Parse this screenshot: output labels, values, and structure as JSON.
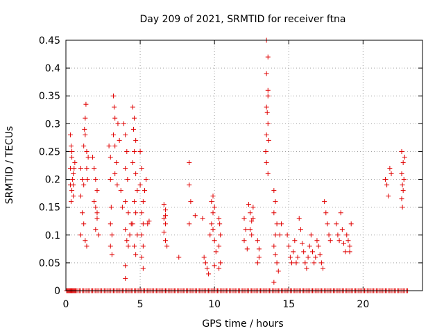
{
  "chart_data": {
    "type": "scatter",
    "title": "Day 209 of 2021, SRMTID for receiver ftna",
    "xlabel": "GPS time / hours",
    "ylabel": "SRMTID / TECUs",
    "xlim": [
      0,
      24
    ],
    "ylim": [
      0,
      0.45
    ],
    "xticks": [
      0,
      5,
      10,
      15,
      20
    ],
    "xtick_labels": [
      "0",
      "5",
      "10",
      "15",
      "20"
    ],
    "yticks": [
      0,
      0.05,
      0.1,
      0.15,
      0.2,
      0.25,
      0.3,
      0.35,
      0.4,
      0.45
    ],
    "ytick_labels": [
      "0",
      "0.05",
      "0.1",
      "0.15",
      "0.2",
      "0.25",
      "0.3",
      "0.35",
      "0.4",
      "0.45"
    ],
    "grid": true,
    "marker": "plus",
    "color": "#e00000",
    "series": [
      {
        "points": [
          [
            0.3,
            0.28
          ],
          [
            0.35,
            0.26
          ],
          [
            0.4,
            0.24
          ],
          [
            0.3,
            0.22
          ],
          [
            0.5,
            0.21
          ],
          [
            0.45,
            0.2
          ],
          [
            0.3,
            0.19
          ],
          [
            0.4,
            0.18
          ],
          [
            0.5,
            0.17
          ],
          [
            0.35,
            0.16
          ],
          [
            0.55,
            0.22
          ],
          [
            0.6,
            0.23
          ],
          [
            0.4,
            0.25
          ],
          [
            0.5,
            0.19
          ],
          [
            1.0,
            0.22
          ],
          [
            1.1,
            0.2
          ],
          [
            1.2,
            0.19
          ],
          [
            1.0,
            0.17
          ],
          [
            1.1,
            0.14
          ],
          [
            1.2,
            0.12
          ],
          [
            1.0,
            0.1
          ],
          [
            1.3,
            0.09
          ],
          [
            1.4,
            0.08
          ],
          [
            1.2,
            0.26
          ],
          [
            1.25,
            0.29
          ],
          [
            1.3,
            0.31
          ],
          [
            1.35,
            0.335
          ],
          [
            1.3,
            0.28
          ],
          [
            1.4,
            0.25
          ],
          [
            1.5,
            0.24
          ],
          [
            1.4,
            0.22
          ],
          [
            1.45,
            0.2
          ],
          [
            1.8,
            0.24
          ],
          [
            1.9,
            0.22
          ],
          [
            2.0,
            0.2
          ],
          [
            2.1,
            0.18
          ],
          [
            1.9,
            0.16
          ],
          [
            2.0,
            0.15
          ],
          [
            2.1,
            0.13
          ],
          [
            2.0,
            0.11
          ],
          [
            2.2,
            0.1
          ],
          [
            2.1,
            0.14
          ],
          [
            2.9,
            0.26
          ],
          [
            3.0,
            0.24
          ],
          [
            3.0,
            0.2
          ],
          [
            3.05,
            0.15
          ],
          [
            3.0,
            0.12
          ],
          [
            3.1,
            0.1
          ],
          [
            3.0,
            0.08
          ],
          [
            3.1,
            0.065
          ],
          [
            3.2,
            0.35
          ],
          [
            3.25,
            0.33
          ],
          [
            3.3,
            0.31
          ],
          [
            3.2,
            0.28
          ],
          [
            3.3,
            0.26
          ],
          [
            3.4,
            0.23
          ],
          [
            3.3,
            0.21
          ],
          [
            3.45,
            0.19
          ],
          [
            3.5,
            0.3
          ],
          [
            3.6,
            0.27
          ],
          [
            3.7,
            0.18
          ],
          [
            3.8,
            0.15
          ],
          [
            3.9,
            0.3
          ],
          [
            4.0,
            0.28
          ],
          [
            4.1,
            0.25
          ],
          [
            4.0,
            0.22
          ],
          [
            4.15,
            0.2
          ],
          [
            4.0,
            0.16
          ],
          [
            4.2,
            0.14
          ],
          [
            4.0,
            0.11
          ],
          [
            4.1,
            0.09
          ],
          [
            4.2,
            0.08
          ],
          [
            4.0,
            0.045
          ],
          [
            4.0,
            0.022
          ],
          [
            4.3,
            0.1
          ],
          [
            4.4,
            0.12
          ],
          [
            4.5,
            0.33
          ],
          [
            4.6,
            0.31
          ],
          [
            4.55,
            0.29
          ],
          [
            4.7,
            0.27
          ],
          [
            4.6,
            0.25
          ],
          [
            4.5,
            0.23
          ],
          [
            4.7,
            0.21
          ],
          [
            4.8,
            0.18
          ],
          [
            4.6,
            0.16
          ],
          [
            4.7,
            0.14
          ],
          [
            4.5,
            0.12
          ],
          [
            4.8,
            0.1
          ],
          [
            4.6,
            0.08
          ],
          [
            4.7,
            0.065
          ],
          [
            5.0,
            0.25
          ],
          [
            5.1,
            0.22
          ],
          [
            5.0,
            0.19
          ],
          [
            5.2,
            0.16
          ],
          [
            5.1,
            0.14
          ],
          [
            5.2,
            0.12
          ],
          [
            5.1,
            0.1
          ],
          [
            5.2,
            0.08
          ],
          [
            5.1,
            0.06
          ],
          [
            5.2,
            0.04
          ],
          [
            5.3,
            0.18
          ],
          [
            5.4,
            0.2
          ],
          [
            5.5,
            0.12
          ],
          [
            5.6,
            0.125
          ],
          [
            6.6,
            0.155
          ],
          [
            6.7,
            0.145
          ],
          [
            6.6,
            0.13
          ],
          [
            6.7,
            0.12
          ],
          [
            6.6,
            0.105
          ],
          [
            6.7,
            0.09
          ],
          [
            6.8,
            0.08
          ],
          [
            6.7,
            0.135
          ],
          [
            7.6,
            0.06
          ],
          [
            8.3,
            0.23
          ],
          [
            8.3,
            0.19
          ],
          [
            8.4,
            0.16
          ],
          [
            8.3,
            0.12
          ],
          [
            8.7,
            0.135
          ],
          [
            9.2,
            0.13
          ],
          [
            9.3,
            0.06
          ],
          [
            9.4,
            0.05
          ],
          [
            9.5,
            0.04
          ],
          [
            9.6,
            0.03
          ],
          [
            9.7,
            0.1
          ],
          [
            9.8,
            0.12
          ],
          [
            9.9,
            0.14
          ],
          [
            9.8,
            0.16
          ],
          [
            9.9,
            0.17
          ],
          [
            10.0,
            0.15
          ],
          [
            9.9,
            0.11
          ],
          [
            10.0,
            0.09
          ],
          [
            10.1,
            0.07
          ],
          [
            10.0,
            0.045
          ],
          [
            10.3,
            0.13
          ],
          [
            10.35,
            0.12
          ],
          [
            10.4,
            0.1
          ],
          [
            10.3,
            0.08
          ],
          [
            10.4,
            0.05
          ],
          [
            10.3,
            0.04
          ],
          [
            12.0,
            0.13
          ],
          [
            12.1,
            0.11
          ],
          [
            12.0,
            0.09
          ],
          [
            12.2,
            0.075
          ],
          [
            12.3,
            0.155
          ],
          [
            12.4,
            0.14
          ],
          [
            12.5,
            0.125
          ],
          [
            12.4,
            0.11
          ],
          [
            12.5,
            0.1
          ],
          [
            12.6,
            0.13
          ],
          [
            12.6,
            0.15
          ],
          [
            12.9,
            0.09
          ],
          [
            13.0,
            0.075
          ],
          [
            13.0,
            0.06
          ],
          [
            12.9,
            0.05
          ],
          [
            13.5,
            0.45
          ],
          [
            13.6,
            0.42
          ],
          [
            13.5,
            0.39
          ],
          [
            13.6,
            0.36
          ],
          [
            13.55,
            0.32
          ],
          [
            13.6,
            0.3
          ],
          [
            13.5,
            0.28
          ],
          [
            13.45,
            0.25
          ],
          [
            13.5,
            0.23
          ],
          [
            13.6,
            0.21
          ],
          [
            13.65,
            0.27
          ],
          [
            13.5,
            0.33
          ],
          [
            13.6,
            0.35
          ],
          [
            14.0,
            0.18
          ],
          [
            14.1,
            0.16
          ],
          [
            14.0,
            0.14
          ],
          [
            14.2,
            0.12
          ],
          [
            14.1,
            0.1
          ],
          [
            14.0,
            0.08
          ],
          [
            14.1,
            0.065
          ],
          [
            14.2,
            0.05
          ],
          [
            14.3,
            0.035
          ],
          [
            14.0,
            0.015
          ],
          [
            14.4,
            0.1
          ],
          [
            14.5,
            0.12
          ],
          [
            14.9,
            0.1
          ],
          [
            15.0,
            0.08
          ],
          [
            15.1,
            0.06
          ],
          [
            15.2,
            0.05
          ],
          [
            15.3,
            0.07
          ],
          [
            15.4,
            0.09
          ],
          [
            15.5,
            0.05
          ],
          [
            15.6,
            0.06
          ],
          [
            15.7,
            0.13
          ],
          [
            15.8,
            0.11
          ],
          [
            15.9,
            0.085
          ],
          [
            16.0,
            0.07
          ],
          [
            16.1,
            0.05
          ],
          [
            16.2,
            0.04
          ],
          [
            16.3,
            0.06
          ],
          [
            16.4,
            0.08
          ],
          [
            16.5,
            0.1
          ],
          [
            16.6,
            0.07
          ],
          [
            16.7,
            0.05
          ],
          [
            16.8,
            0.06
          ],
          [
            16.9,
            0.09
          ],
          [
            17.0,
            0.08
          ],
          [
            17.1,
            0.065
          ],
          [
            17.2,
            0.05
          ],
          [
            17.3,
            0.04
          ],
          [
            17.4,
            0.16
          ],
          [
            17.5,
            0.14
          ],
          [
            17.6,
            0.12
          ],
          [
            17.7,
            0.1
          ],
          [
            17.8,
            0.09
          ],
          [
            18.2,
            0.12
          ],
          [
            18.3,
            0.1
          ],
          [
            18.4,
            0.09
          ],
          [
            18.5,
            0.14
          ],
          [
            18.6,
            0.11
          ],
          [
            18.7,
            0.085
          ],
          [
            18.8,
            0.07
          ],
          [
            18.9,
            0.1
          ],
          [
            19.0,
            0.09
          ],
          [
            19.1,
            0.07
          ],
          [
            19.2,
            0.12
          ],
          [
            19.1,
            0.08
          ],
          [
            21.5,
            0.2
          ],
          [
            21.6,
            0.19
          ],
          [
            21.7,
            0.17
          ],
          [
            21.8,
            0.22
          ],
          [
            21.9,
            0.21
          ],
          [
            22.6,
            0.25
          ],
          [
            22.7,
            0.23
          ],
          [
            22.6,
            0.21
          ],
          [
            22.65,
            0.19
          ],
          [
            22.7,
            0.18
          ],
          [
            22.6,
            0.165
          ],
          [
            22.65,
            0.15
          ],
          [
            22.75,
            0.2
          ],
          [
            22.8,
            0.24
          ]
        ],
        "zero_points": [
          0.05,
          0.1,
          0.15,
          0.2,
          0.25,
          0.3,
          0.35,
          0.4,
          0.45,
          0.5,
          0.55,
          0.6,
          0.65,
          0.7,
          0.8,
          0.9,
          1.0,
          1.1,
          1.2,
          1.3,
          1.4,
          1.5,
          1.6,
          1.7,
          1.8,
          1.9,
          2.0,
          2.1,
          2.2,
          2.3,
          2.4,
          2.5,
          2.6,
          2.7,
          2.8,
          2.9,
          3.0,
          3.1,
          3.2,
          3.3,
          3.4,
          3.5,
          3.6,
          3.7,
          3.8,
          3.9,
          4.0,
          4.1,
          4.2,
          4.3,
          4.4,
          4.5,
          4.6,
          4.7,
          4.8,
          4.9,
          5.0,
          5.1,
          5.2,
          5.3,
          5.4,
          5.5,
          5.6,
          5.7,
          5.8,
          5.9,
          6.0,
          6.1,
          6.2,
          6.3,
          6.4,
          6.5,
          6.6,
          6.7,
          6.8,
          6.9,
          7.0,
          7.1,
          7.2,
          7.3,
          7.4,
          7.5,
          7.6,
          7.7,
          7.8,
          7.9,
          8.0,
          8.1,
          8.2,
          8.3,
          8.4,
          8.5,
          8.6,
          8.7,
          8.8,
          8.9,
          9.0,
          9.1,
          9.2,
          9.3,
          9.4,
          9.5,
          9.6,
          9.7,
          9.8,
          9.9,
          10.0,
          10.1,
          10.2,
          10.3,
          10.4,
          10.5,
          10.6,
          10.7,
          10.8,
          10.9,
          11.0,
          11.1,
          11.2,
          11.3,
          11.4,
          11.5,
          11.6,
          11.7,
          11.8,
          11.9,
          12.0,
          12.1,
          12.2,
          12.3,
          12.4,
          12.5,
          12.6,
          12.7,
          12.8,
          12.9,
          13.0,
          13.1,
          13.2,
          13.3,
          13.4,
          13.5,
          13.6,
          13.7,
          13.8,
          13.9,
          14.0,
          14.1,
          14.2,
          14.3,
          14.4,
          14.5,
          14.6,
          14.7,
          14.8,
          14.9,
          15.0,
          15.1,
          15.2,
          15.3,
          15.4,
          15.5,
          15.6,
          15.7,
          15.8,
          15.9,
          16.0,
          16.1,
          16.2,
          16.3,
          16.4,
          16.5,
          16.6,
          16.7,
          16.8,
          16.9,
          17.0,
          17.1,
          17.2,
          17.3,
          17.4,
          17.5,
          17.6,
          17.7,
          17.8,
          17.9,
          18.0,
          18.1,
          18.2,
          18.3,
          18.4,
          18.5,
          18.6,
          18.7,
          18.8,
          18.9,
          19.0,
          19.1,
          19.2,
          19.3,
          19.4,
          19.5,
          19.6,
          19.7,
          19.8,
          19.9,
          20.0,
          20.1,
          20.2,
          20.3,
          20.4,
          20.5,
          20.6,
          20.7,
          20.8,
          20.9,
          21.0,
          21.1,
          21.2,
          21.3,
          21.4,
          21.5,
          21.6,
          21.7,
          21.8,
          21.9,
          22.0,
          22.1,
          22.2,
          22.3,
          22.4,
          22.5,
          22.6,
          22.7,
          22.8,
          22.9,
          23.0
        ]
      }
    ]
  }
}
